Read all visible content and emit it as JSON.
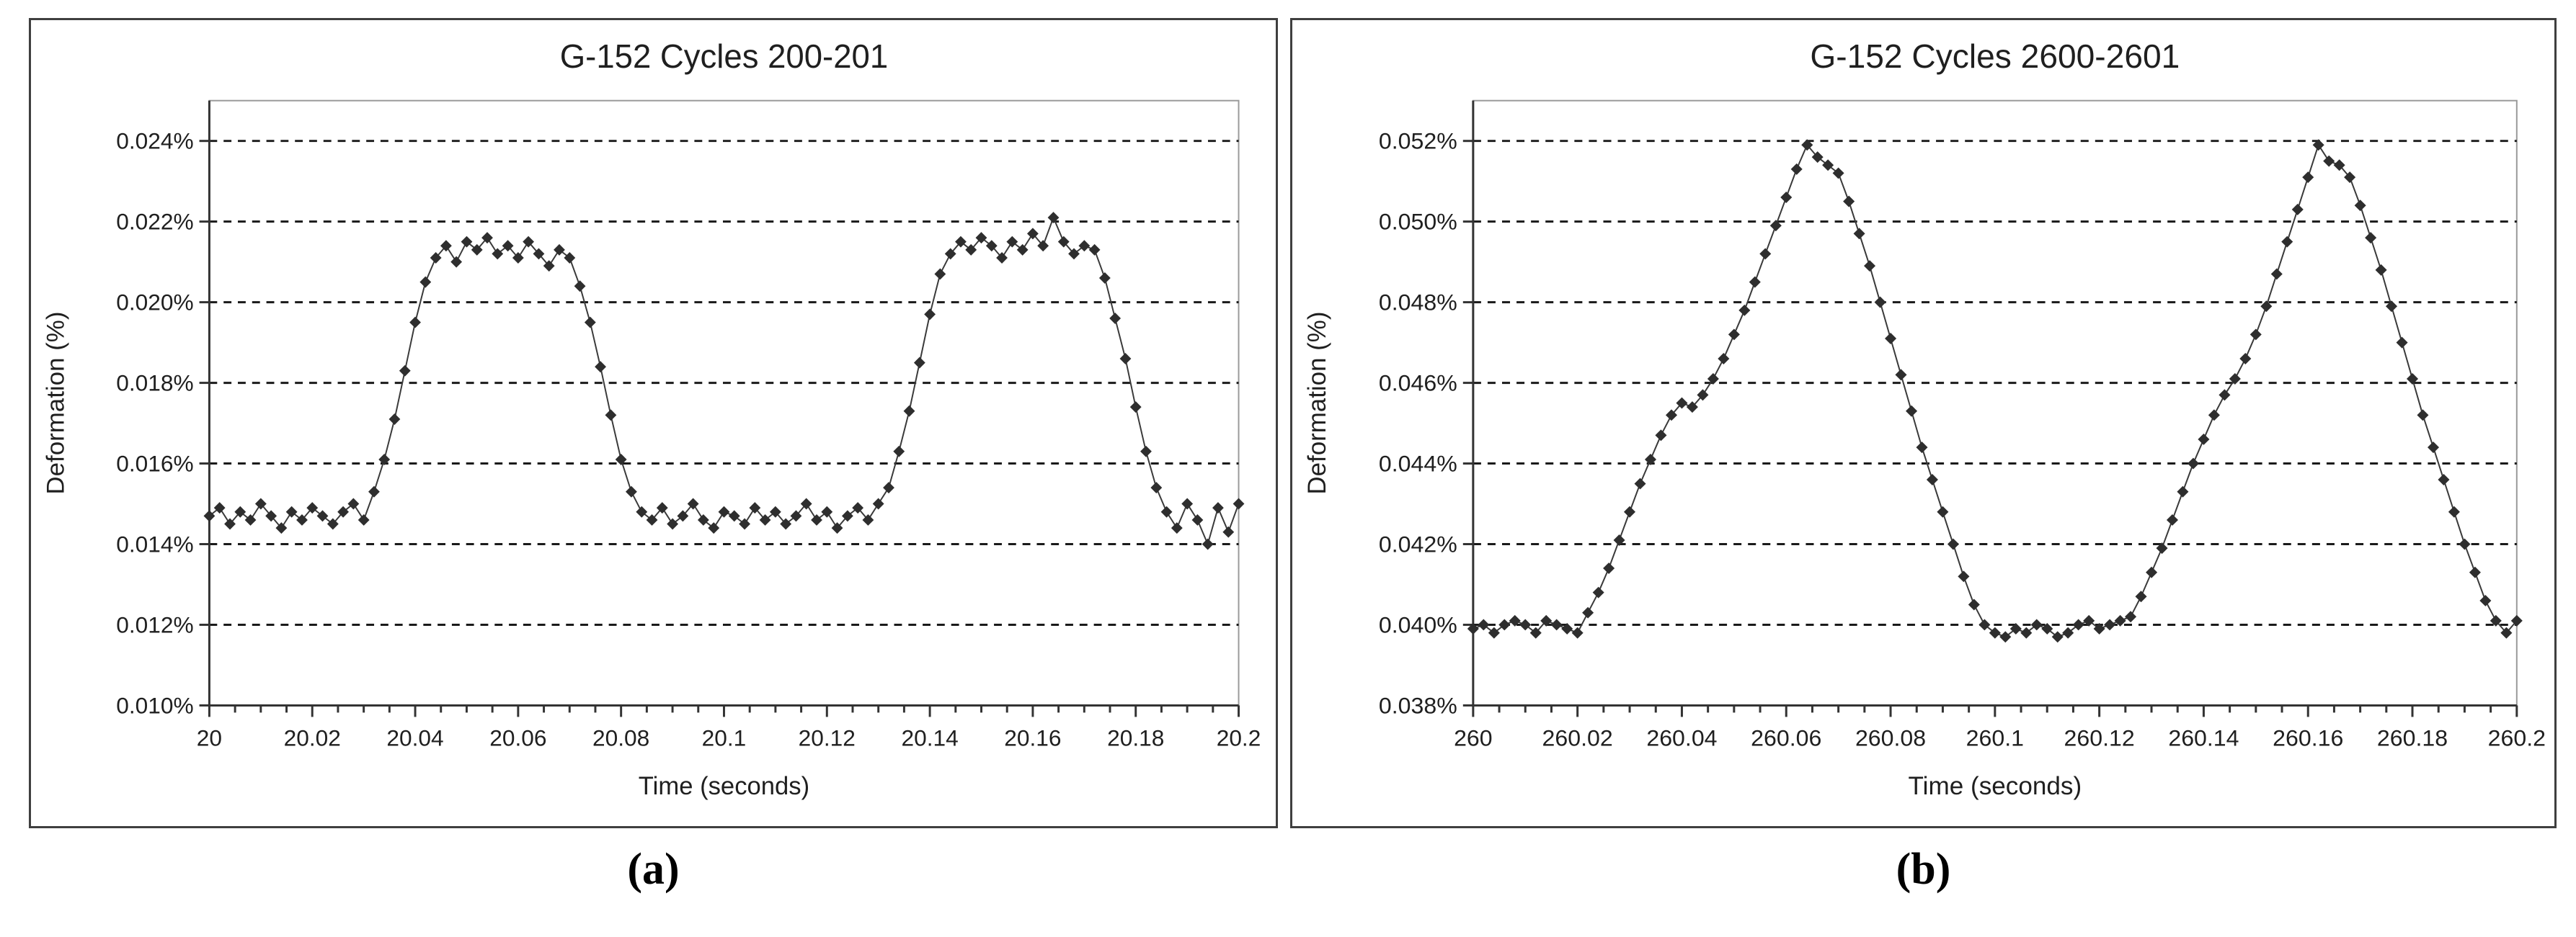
{
  "figure": {
    "captions": {
      "a": "(a)",
      "b": "(b)"
    }
  },
  "colors": {
    "series": "#2e2e2e",
    "series_line": "#3a3a3a",
    "grid": "#1a1a1a",
    "axis": "#333333",
    "plot_border": "#9a9a9a",
    "panel_border": "#3f3f3f",
    "text": "#1f1f1f"
  },
  "chart_data": [
    {
      "id": "a",
      "type": "line",
      "title": "G-152 Cycles 200-201",
      "xlabel": "Time (seconds)",
      "ylabel": "Deformation (%)",
      "marker": "diamond",
      "grid": "horizontal-dashed",
      "legend": "none",
      "xlim": [
        20,
        20.2
      ],
      "ylim": [
        0.01,
        0.025
      ],
      "y_label_max": 0.024,
      "y_tick_step": 0.002,
      "x_major_tick_step": 0.02,
      "x_minor_tick_step": 0.005,
      "y_tick_labels": [
        "0.010%",
        "0.012%",
        "0.014%",
        "0.016%",
        "0.018%",
        "0.020%",
        "0.022%",
        "0.024%"
      ],
      "x_tick_labels": [
        "20",
        "20.02",
        "20.04",
        "20.06",
        "20.08",
        "20.1",
        "20.12",
        "20.14",
        "20.16",
        "20.18",
        "20.2"
      ],
      "x_start": 20,
      "x_step": 0.002,
      "values": [
        0.0147,
        0.0149,
        0.0145,
        0.0148,
        0.0146,
        0.015,
        0.0147,
        0.0144,
        0.0148,
        0.0146,
        0.0149,
        0.0147,
        0.0145,
        0.0148,
        0.015,
        0.0146,
        0.0153,
        0.0161,
        0.0171,
        0.0183,
        0.0195,
        0.0205,
        0.0211,
        0.0214,
        0.021,
        0.0215,
        0.0213,
        0.0216,
        0.0212,
        0.0214,
        0.0211,
        0.0215,
        0.0212,
        0.0209,
        0.0213,
        0.0211,
        0.0204,
        0.0195,
        0.0184,
        0.0172,
        0.0161,
        0.0153,
        0.0148,
        0.0146,
        0.0149,
        0.0145,
        0.0147,
        0.015,
        0.0146,
        0.0144,
        0.0148,
        0.0147,
        0.0145,
        0.0149,
        0.0146,
        0.0148,
        0.0145,
        0.0147,
        0.015,
        0.0146,
        0.0148,
        0.0144,
        0.0147,
        0.0149,
        0.0146,
        0.015,
        0.0154,
        0.0163,
        0.0173,
        0.0185,
        0.0197,
        0.0207,
        0.0212,
        0.0215,
        0.0213,
        0.0216,
        0.0214,
        0.0211,
        0.0215,
        0.0213,
        0.0217,
        0.0214,
        0.0221,
        0.0215,
        0.0212,
        0.0214,
        0.0213,
        0.0206,
        0.0196,
        0.0186,
        0.0174,
        0.0163,
        0.0154,
        0.0148,
        0.0144,
        0.015,
        0.0146,
        0.014,
        0.0149,
        0.0143,
        0.015
      ]
    },
    {
      "id": "b",
      "type": "line",
      "title": "G-152 Cycles 2600-2601",
      "xlabel": "Time (seconds)",
      "ylabel": "Deformation (%)",
      "marker": "diamond",
      "grid": "horizontal-dashed",
      "legend": "none",
      "xlim": [
        260,
        260.2
      ],
      "ylim": [
        0.038,
        0.053
      ],
      "y_label_max": 0.052,
      "y_tick_step": 0.002,
      "x_major_tick_step": 0.02,
      "x_minor_tick_step": 0.005,
      "y_tick_labels": [
        "0.038%",
        "0.040%",
        "0.042%",
        "0.044%",
        "0.046%",
        "0.048%",
        "0.050%",
        "0.052%"
      ],
      "x_tick_labels": [
        "260",
        "260.02",
        "260.04",
        "260.06",
        "260.08",
        "260.1",
        "260.12",
        "260.14",
        "260.16",
        "260.18",
        "260.2"
      ],
      "x_start": 260,
      "x_step": 0.002,
      "values": [
        0.0399,
        0.04,
        0.0398,
        0.04,
        0.0401,
        0.04,
        0.0398,
        0.0401,
        0.04,
        0.0399,
        0.0398,
        0.0403,
        0.0408,
        0.0414,
        0.0421,
        0.0428,
        0.0435,
        0.0441,
        0.0447,
        0.0452,
        0.0455,
        0.0454,
        0.0457,
        0.0461,
        0.0466,
        0.0472,
        0.0478,
        0.0485,
        0.0492,
        0.0499,
        0.0506,
        0.0513,
        0.0519,
        0.0516,
        0.0514,
        0.0512,
        0.0505,
        0.0497,
        0.0489,
        0.048,
        0.0471,
        0.0462,
        0.0453,
        0.0444,
        0.0436,
        0.0428,
        0.042,
        0.0412,
        0.0405,
        0.04,
        0.0398,
        0.0397,
        0.0399,
        0.0398,
        0.04,
        0.0399,
        0.0397,
        0.0398,
        0.04,
        0.0401,
        0.0399,
        0.04,
        0.0401,
        0.0402,
        0.0407,
        0.0413,
        0.0419,
        0.0426,
        0.0433,
        0.044,
        0.0446,
        0.0452,
        0.0457,
        0.0461,
        0.0466,
        0.0472,
        0.0479,
        0.0487,
        0.0495,
        0.0503,
        0.0511,
        0.0519,
        0.0515,
        0.0514,
        0.0511,
        0.0504,
        0.0496,
        0.0488,
        0.0479,
        0.047,
        0.0461,
        0.0452,
        0.0444,
        0.0436,
        0.0428,
        0.042,
        0.0413,
        0.0406,
        0.0401,
        0.0398,
        0.0401
      ]
    }
  ]
}
